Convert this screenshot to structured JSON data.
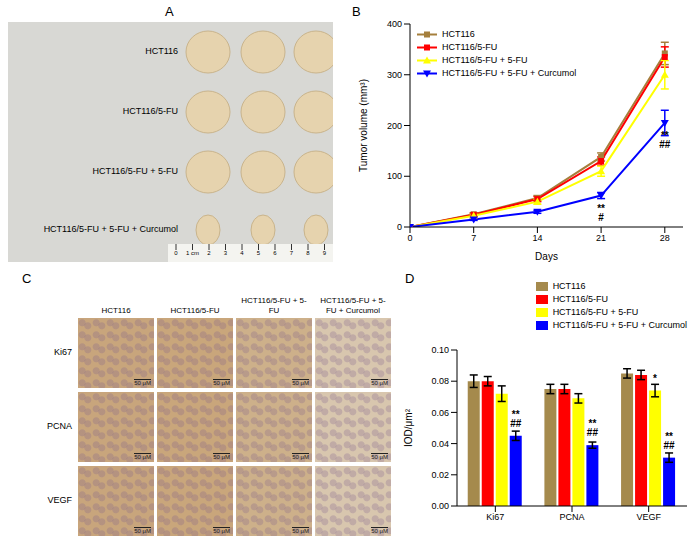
{
  "panel_a": {
    "title": "A",
    "rows": [
      "HCT116",
      "HCT116/5-FU",
      "HCT116/5-FU + 5-FU",
      "HCT116/5-FU + 5-FU + Curcumol"
    ],
    "ruler_labels": [
      "0",
      "1 cm",
      "2",
      "3",
      "4",
      "5",
      "6",
      "7",
      "8",
      "9"
    ]
  },
  "panel_c": {
    "title": "C",
    "columns": [
      "HCT116",
      "HCT116/5-FU",
      "HCT116/5-FU + 5-FU",
      "HCT116/5-FU + 5-FU + Curcumol"
    ],
    "rows": [
      "Ki67",
      "PCNA",
      "VEGF"
    ],
    "scale_label": "50 μM"
  },
  "chart_data": [
    {
      "type": "line",
      "title": "B",
      "x_label": "Days",
      "y_label": "Tumor volume (mm³)",
      "x": [
        0,
        7,
        14,
        21,
        28
      ],
      "xlim": [
        0,
        30
      ],
      "xticks": [
        0,
        7,
        14,
        21,
        28
      ],
      "ylim": [
        0,
        400
      ],
      "yticks": [
        0,
        100,
        200,
        300,
        400
      ],
      "legend": "upper left",
      "series": [
        {
          "name": "HCT116",
          "color": "#a57f3c",
          "marker": "square",
          "values": [
            0,
            25,
            57,
            138,
            342
          ],
          "errors": [
            0,
            3,
            5,
            8,
            22
          ],
          "annotations": [
            null,
            null,
            null,
            null,
            null
          ]
        },
        {
          "name": "HCT116/5-FU",
          "color": "#ff0000",
          "marker": "square",
          "values": [
            0,
            24,
            55,
            130,
            335
          ],
          "errors": [
            0,
            3,
            5,
            8,
            20
          ],
          "annotations": [
            null,
            null,
            null,
            null,
            null
          ]
        },
        {
          "name": "HCT116/5-FU + 5-FU",
          "color": "#ffff00",
          "marker": "triangle",
          "values": [
            0,
            22,
            50,
            110,
            300
          ],
          "errors": [
            0,
            3,
            5,
            10,
            28
          ],
          "annotations": [
            null,
            null,
            null,
            null,
            null
          ]
        },
        {
          "name": "HCT116/5-FU + 5-FU + Curcumol",
          "color": "#0000ff",
          "marker": "triangle-down",
          "values": [
            0,
            15,
            30,
            62,
            205
          ],
          "errors": [
            0,
            2,
            3,
            6,
            25
          ],
          "annotations": [
            null,
            null,
            null,
            [
              "**",
              "#"
            ],
            [
              "**",
              "##"
            ]
          ]
        }
      ]
    },
    {
      "type": "bar",
      "title": "D",
      "y_label": "IOD/μm²",
      "categories": [
        "Ki67",
        "PCNA",
        "VEGF"
      ],
      "ylim": [
        0,
        0.1
      ],
      "yticks": [
        {
          "value": 0,
          "label": "0.00"
        },
        {
          "value": 0.02,
          "label": "0.02"
        },
        {
          "value": 0.04,
          "label": "0.04"
        },
        {
          "value": 0.06,
          "label": "0.06"
        },
        {
          "value": 0.08,
          "label": "0.08"
        },
        {
          "value": 0.1,
          "label": "0.10"
        }
      ],
      "legend": "upper right",
      "series": [
        {
          "name": "HCT116",
          "color": "#a58a4d",
          "values": [
            0.08,
            0.075,
            0.085
          ],
          "errors": [
            0.004,
            0.003,
            0.003
          ],
          "annotations": [
            null,
            null,
            null
          ]
        },
        {
          "name": "HCT116/5-FU",
          "color": "#ff0000",
          "values": [
            0.08,
            0.075,
            0.084
          ],
          "errors": [
            0.003,
            0.003,
            0.003
          ],
          "annotations": [
            null,
            null,
            null
          ]
        },
        {
          "name": "HCT116/5-FU + 5-FU",
          "color": "#ffff00",
          "values": [
            0.072,
            0.069,
            0.074
          ],
          "errors": [
            0.005,
            0.003,
            0.004
          ],
          "annotations": [
            null,
            null,
            [
              "*"
            ]
          ]
        },
        {
          "name": "HCT116/5-FU + 5-FU + Curcumol",
          "color": "#0000ff",
          "values": [
            0.045,
            0.039,
            0.031
          ],
          "errors": [
            0.003,
            0.002,
            0.003
          ],
          "annotations": [
            [
              "**",
              "##"
            ],
            [
              "**",
              "##"
            ],
            [
              "**",
              "##"
            ]
          ]
        }
      ]
    }
  ]
}
